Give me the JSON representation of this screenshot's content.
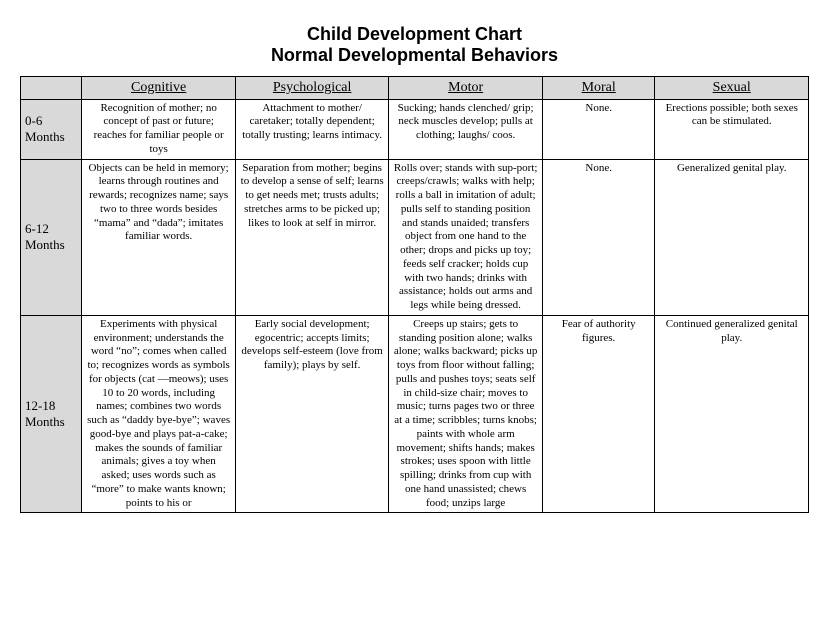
{
  "title_line1": "Child Development Chart",
  "title_line2": "Normal Developmental Behaviors",
  "columns": [
    "Cognitive",
    "Psychological",
    "Motor",
    "Moral",
    "Sexual"
  ],
  "rows": [
    {
      "age": "0-6 Months",
      "cognitive": "Recognition of mother; no concept of past or future; reaches for familiar people or toys",
      "psychological": "Attachment to mother/ caretaker; totally dependent; totally trusting; learns intimacy.",
      "motor": "Sucking; hands clenched/ grip; neck muscles develop; pulls at clothing; laughs/ coos.",
      "moral": "None.",
      "sexual": "Erections possible; both sexes can be stimulated."
    },
    {
      "age": "6-12 Months",
      "cognitive": "Objects can be held in memory; learns through routines and rewards; recognizes name; says two to three words besides “mama” and “dada”; imitates familiar words.",
      "psychological": "Separation from mother; begins to develop a sense of self; learns to get needs met; trusts adults; stretches arms to be picked up; likes to look at self in mirror.",
      "motor": "Rolls over; stands with sup-port; creeps/crawls; walks with help; rolls a ball in imitation of adult; pulls self to standing position and stands unaided; transfers object from one hand to the other; drops and picks up toy; feeds self cracker; holds cup with two hands; drinks with assistance; holds out arms and legs while being dressed.",
      "moral": "None.",
      "sexual": "Generalized genital play."
    },
    {
      "age": "12-18 Months",
      "cognitive": "Experiments with physical environment; understands the word “no”; comes when called to; recognizes words as symbols for objects (cat —meows); uses 10 to 20 words, including names; combines two words such as “daddy bye-bye”; waves good-bye and plays pat-a-cake; makes the sounds of familiar animals; gives a toy when asked; uses words such as “more” to make wants known; points to his or",
      "psychological": "Early social development; egocentric; accepts limits; develops self-esteem (love from family); plays by self.",
      "motor": "Creeps up stairs; gets to standing position alone; walks alone; walks backward; picks up toys from floor without falling; pulls and pushes toys; seats self in child-size chair; moves to music; turns pages two or three at a time; scribbles; turns knobs; paints with whole arm movement; shifts hands; makes strokes; uses spoon with little spilling; drinks from cup with one hand unassisted; chews food; unzips large",
      "moral": "Fear of authority figures.",
      "sexual": "Continued generalized genital play."
    }
  ]
}
